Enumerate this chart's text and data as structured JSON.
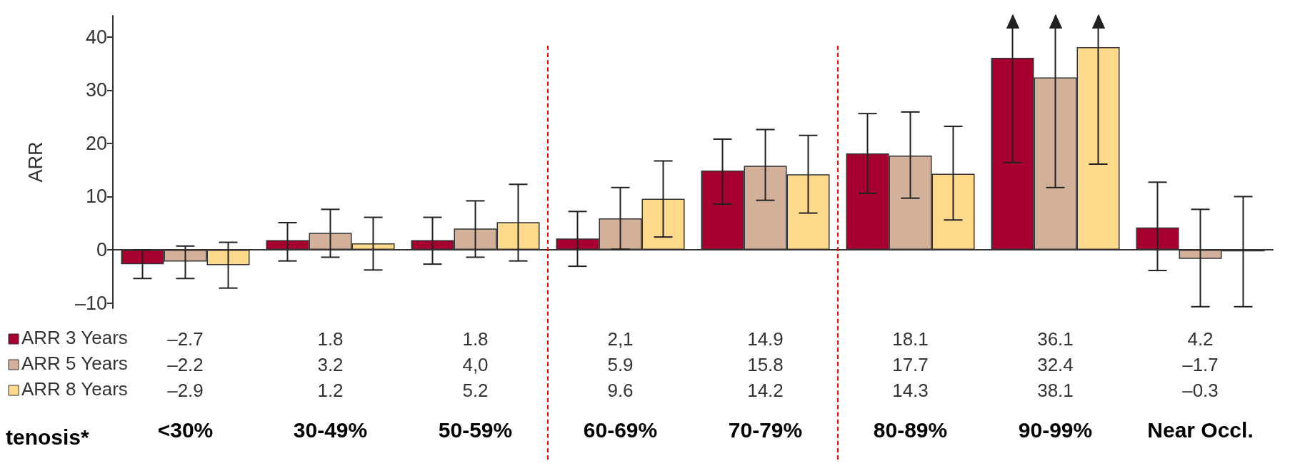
{
  "chart_data": {
    "type": "bar",
    "ylabel": "ARR",
    "xlabel": "tenosis*",
    "categories": [
      "<30%",
      "30-49%",
      "50-59%",
      "60-69%",
      "70-79%",
      "80-89%",
      "90-99%",
      "Near Occl."
    ],
    "legend": "bottom left",
    "ylim": [
      -11,
      44
    ],
    "yticks": [
      {
        "value": -10,
        "label": "–10"
      },
      0,
      10,
      20,
      30,
      40
    ],
    "series": [
      {
        "name": "ARR 3 Years",
        "color": "#a50030",
        "values": [
          -2.7,
          1.8,
          1.8,
          2.1,
          14.9,
          18.1,
          36.1,
          4.2
        ],
        "value_labels": [
          "–2.7",
          "1.8",
          "1.8",
          "2,1",
          "14.9",
          "18.1",
          "36.1",
          "4.2"
        ],
        "errors": [
          [
            -5.4,
            0
          ],
          [
            -2.1,
            5.1
          ],
          [
            -2.7,
            6.1
          ],
          [
            -3.1,
            7.2
          ],
          [
            8.6,
            20.8
          ],
          [
            10.6,
            25.6
          ],
          [
            16.4,
            44
          ],
          [
            -3.9,
            12.7
          ]
        ]
      },
      {
        "name": "ARR 5 Years",
        "color": "#d2b09a",
        "values": [
          -2.2,
          3.2,
          4.0,
          5.9,
          15.8,
          17.7,
          32.4,
          -1.7
        ],
        "value_labels": [
          "–2.2",
          "3.2",
          "4,0",
          "5.9",
          "15.8",
          "17.7",
          "32.4",
          "–1.7"
        ],
        "errors": [
          [
            -5.4,
            0.7
          ],
          [
            -1.4,
            7.6
          ],
          [
            -1.4,
            9.2
          ],
          [
            0.1,
            11.7
          ],
          [
            9.3,
            22.6
          ],
          [
            9.7,
            25.9
          ],
          [
            11.7,
            44
          ],
          [
            -10.7,
            7.6
          ]
        ]
      },
      {
        "name": "ARR 8 Years",
        "color": "#fdd98c",
        "values": [
          -2.9,
          1.2,
          5.2,
          9.6,
          14.2,
          14.3,
          38.1,
          -0.3
        ],
        "value_labels": [
          "–2.9",
          "1.2",
          "5.2",
          "9.6",
          "14.2",
          "14.3",
          "38.1",
          "–0.3"
        ],
        "errors": [
          [
            -7.2,
            1.4
          ],
          [
            -3.8,
            6.1
          ],
          [
            -2.1,
            12.3
          ],
          [
            2.4,
            16.7
          ],
          [
            6.9,
            21.5
          ],
          [
            5.6,
            23.2
          ],
          [
            16.1,
            44
          ],
          [
            -10.7,
            10.0
          ]
        ]
      }
    ]
  }
}
